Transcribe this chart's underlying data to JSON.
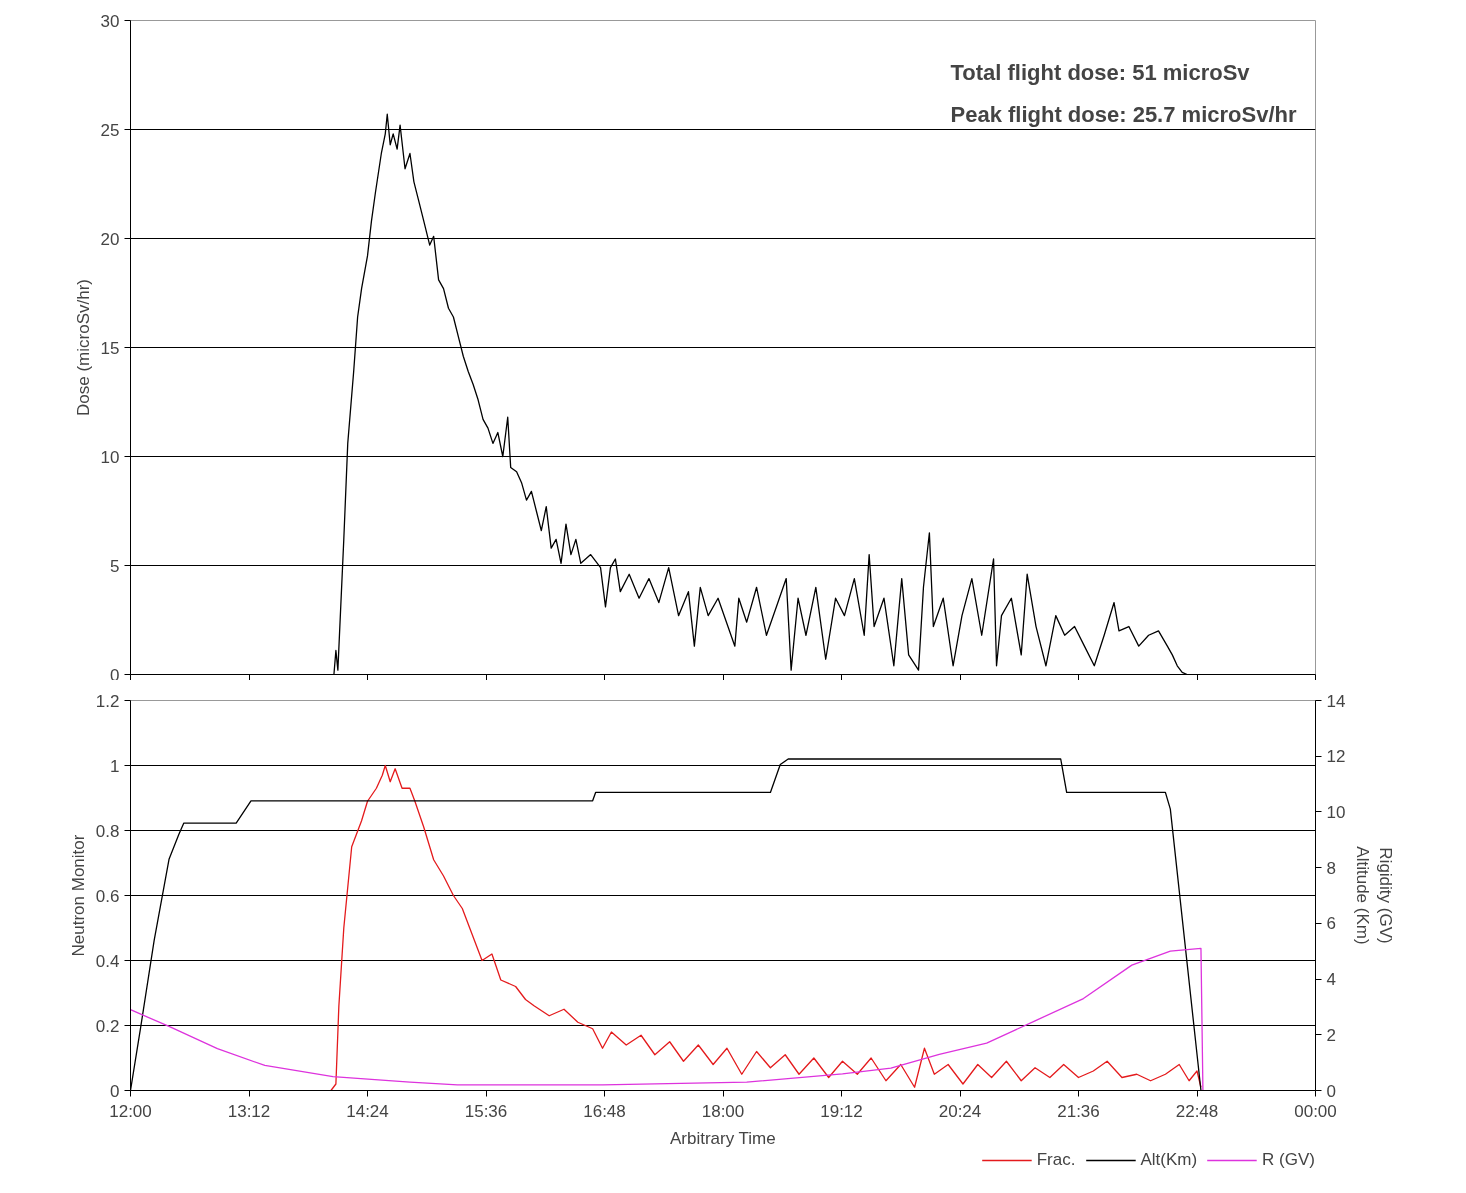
{
  "chart_data": [
    {
      "type": "line",
      "ylabel": "Dose (microSv/hr)",
      "xlim": [
        12,
        24
      ],
      "ylim": [
        0,
        30
      ],
      "yticks": [
        0,
        5,
        10,
        15,
        20,
        25,
        30
      ],
      "xticks": [
        {
          "value": 12,
          "label": null
        },
        {
          "value": 13.2,
          "label": null
        },
        {
          "value": 14.4,
          "label": null
        },
        {
          "value": 15.6,
          "label": null
        },
        {
          "value": 16.8,
          "label": null
        },
        {
          "value": 18,
          "label": null
        },
        {
          "value": 19.2,
          "label": null
        },
        {
          "value": 20.4,
          "label": null
        },
        {
          "value": 21.6,
          "label": null
        },
        {
          "value": 22.8,
          "label": null
        },
        {
          "value": 24,
          "label": null
        }
      ],
      "tick_labels": "y",
      "grid": "y",
      "legend": false,
      "annotations": [
        "Total flight dose: 51 microSv",
        "Peak flight dose: 25.7 microSv/hr"
      ],
      "series": [
        {
          "color": "#000000",
          "x": [
            14.06,
            14.08,
            14.1,
            14.16,
            14.2,
            14.26,
            14.3,
            14.34,
            14.4,
            14.44,
            14.48,
            14.54,
            14.58,
            14.6,
            14.63,
            14.66,
            14.7,
            14.73,
            14.78,
            14.83,
            14.87,
            14.92,
            14.97,
            15.03,
            15.07,
            15.12,
            15.17,
            15.22,
            15.27,
            15.32,
            15.37,
            15.42,
            15.47,
            15.52,
            15.57,
            15.62,
            15.67,
            15.72,
            15.77,
            15.82,
            15.85,
            15.91,
            15.96,
            16.01,
            16.06,
            16.11,
            16.16,
            16.21,
            16.26,
            16.31,
            16.36,
            16.41,
            16.46,
            16.51,
            16.56,
            16.66,
            16.76,
            16.81,
            16.86,
            16.91,
            16.96,
            17.05,
            17.15,
            17.25,
            17.35,
            17.45,
            17.55,
            17.65,
            17.71,
            17.77,
            17.85,
            17.95,
            18.05,
            18.12,
            18.16,
            18.24,
            18.34,
            18.44,
            18.54,
            18.64,
            18.69,
            18.76,
            18.84,
            18.94,
            19.04,
            19.14,
            19.23,
            19.33,
            19.43,
            19.48,
            19.53,
            19.63,
            19.73,
            19.81,
            19.88,
            19.98,
            20.03,
            20.09,
            20.13,
            20.23,
            20.33,
            20.42,
            20.52,
            20.62,
            20.74,
            20.77,
            20.82,
            20.92,
            21.02,
            21.08,
            21.17,
            21.27,
            21.37,
            21.46,
            21.56,
            21.66,
            21.76,
            21.86,
            21.96,
            22.01,
            22.11,
            22.21,
            22.31,
            22.41,
            22.5,
            22.55,
            22.6,
            22.65,
            22.7
          ],
          "values": [
            0,
            1.1,
            0.2,
            6.2,
            10.6,
            13.9,
            16.4,
            17.7,
            19.2,
            20.8,
            22.1,
            23.9,
            24.8,
            25.7,
            24.3,
            24.8,
            24.1,
            25.2,
            23.2,
            23.9,
            22.6,
            21.7,
            20.8,
            19.7,
            20.1,
            18.1,
            17.7,
            16.8,
            16.4,
            15.5,
            14.6,
            13.9,
            13.3,
            12.6,
            11.7,
            11.3,
            10.6,
            11.1,
            10.0,
            11.8,
            9.5,
            9.3,
            8.8,
            8.0,
            8.4,
            7.5,
            6.6,
            7.7,
            5.8,
            6.2,
            5.1,
            6.9,
            5.5,
            6.2,
            5.1,
            5.5,
            4.9,
            3.1,
            4.9,
            5.3,
            3.8,
            4.6,
            3.5,
            4.4,
            3.3,
            4.9,
            2.7,
            3.8,
            1.3,
            4.0,
            2.7,
            3.5,
            2.2,
            1.3,
            3.5,
            2.4,
            4.0,
            1.8,
            3.1,
            4.4,
            0.2,
            3.5,
            1.8,
            4.0,
            0.7,
            3.5,
            2.7,
            4.4,
            1.8,
            5.5,
            2.2,
            3.5,
            0.4,
            4.4,
            0.9,
            0.2,
            4.0,
            6.5,
            2.2,
            3.5,
            0.4,
            2.7,
            4.4,
            1.8,
            5.3,
            0.4,
            2.7,
            3.5,
            0.9,
            4.6,
            2.2,
            0.4,
            2.7,
            1.8,
            2.2,
            1.3,
            0.4,
            1.8,
            3.3,
            2.0,
            2.2,
            1.3,
            1.8,
            2.0,
            1.3,
            0.9,
            0.4,
            0.1,
            0
          ]
        }
      ]
    },
    {
      "type": "line",
      "xlabel": "Arbitrary Time",
      "ylabel": "Neutron Monitor",
      "y2label": "Rigidity (GV)\nAltitude (Km)",
      "xlim": [
        12,
        24
      ],
      "ylim": [
        0,
        1.2
      ],
      "yticks": [
        0,
        0.2,
        0.4,
        0.6,
        0.8,
        1,
        1.2
      ],
      "y2lim": [
        0,
        14
      ],
      "y2ticks": [
        0,
        2,
        4,
        6,
        8,
        10,
        12,
        14
      ],
      "xticks": [
        {
          "value": 12,
          "label": "12:00"
        },
        {
          "value": 13.2,
          "label": "13:12"
        },
        {
          "value": 14.4,
          "label": "14:24"
        },
        {
          "value": 15.6,
          "label": "15:36"
        },
        {
          "value": 16.8,
          "label": "16:48"
        },
        {
          "value": 18,
          "label": "18:00"
        },
        {
          "value": 19.2,
          "label": "19:12"
        },
        {
          "value": 20.4,
          "label": "20:24"
        },
        {
          "value": 21.6,
          "label": "21:36"
        },
        {
          "value": 22.8,
          "label": "22:48"
        },
        {
          "value": 24,
          "label": "00:00"
        }
      ],
      "grid": "y",
      "legend": "bottom",
      "series": [
        {
          "name": "Frac.",
          "color": "#e41a1c",
          "x": [
            14.03,
            14.08,
            14.11,
            14.16,
            14.24,
            14.34,
            14.4,
            14.49,
            14.55,
            14.58,
            14.63,
            14.68,
            14.75,
            14.83,
            14.88,
            14.97,
            15.07,
            15.17,
            15.27,
            15.36,
            15.46,
            15.56,
            15.66,
            15.75,
            15.9,
            16.0,
            16.09,
            16.24,
            16.39,
            16.53,
            16.68,
            16.78,
            16.87,
            17.02,
            17.17,
            17.31,
            17.46,
            17.6,
            17.75,
            17.9,
            18.04,
            18.19,
            18.34,
            18.48,
            18.63,
            18.77,
            18.92,
            19.07,
            19.21,
            19.36,
            19.5,
            19.65,
            19.8,
            19.94,
            20.04,
            20.14,
            20.28,
            20.43,
            20.58,
            20.72,
            20.87,
            21.02,
            21.16,
            21.31,
            21.45,
            21.6,
            21.75,
            21.89,
            22.04,
            22.19,
            22.33,
            22.48,
            22.62,
            22.72,
            22.8,
            22.84
          ],
          "values": [
            0,
            0.02,
            0.26,
            0.5,
            0.75,
            0.83,
            0.89,
            0.93,
            0.97,
            1.0,
            0.95,
            0.99,
            0.93,
            0.93,
            0.89,
            0.81,
            0.71,
            0.66,
            0.6,
            0.56,
            0.48,
            0.4,
            0.42,
            0.34,
            0.32,
            0.28,
            0.26,
            0.23,
            0.25,
            0.21,
            0.19,
            0.13,
            0.18,
            0.14,
            0.17,
            0.11,
            0.15,
            0.09,
            0.14,
            0.08,
            0.13,
            0.05,
            0.12,
            0.07,
            0.11,
            0.05,
            0.1,
            0.04,
            0.09,
            0.05,
            0.1,
            0.03,
            0.08,
            0.01,
            0.13,
            0.05,
            0.08,
            0.02,
            0.08,
            0.04,
            0.09,
            0.03,
            0.07,
            0.04,
            0.08,
            0.04,
            0.06,
            0.09,
            0.04,
            0.05,
            0.03,
            0.05,
            0.08,
            0.03,
            0.06,
            0.01
          ]
        },
        {
          "name": "Alt(Km)",
          "color": "#000000",
          "axis": "y2",
          "x": [
            12.0,
            12.1,
            12.24,
            12.39,
            12.49,
            12.54,
            13.07,
            13.22,
            16.68,
            16.71,
            18.48,
            18.58,
            18.66,
            21.42,
            21.48,
            22.48,
            22.53,
            22.84
          ],
          "values": [
            0,
            2.2,
            5.4,
            8.3,
            9.2,
            9.6,
            9.6,
            10.4,
            10.4,
            10.7,
            10.7,
            11.7,
            11.9,
            11.9,
            10.7,
            10.7,
            10.1,
            0
          ]
        },
        {
          "name": "R (GV)",
          "color": "#dd33dd",
          "axis": "y2",
          "x": [
            12.0,
            12.39,
            12.88,
            13.36,
            14.05,
            14.83,
            15.31,
            16.78,
            18.24,
            19.21,
            19.7,
            20.19,
            20.67,
            21.16,
            21.65,
            22.14,
            22.53,
            22.84,
            22.86
          ],
          "values": [
            2.9,
            2.3,
            1.5,
            0.9,
            0.5,
            0.3,
            0.2,
            0.2,
            0.3,
            0.6,
            0.8,
            1.3,
            1.7,
            2.5,
            3.3,
            4.5,
            5.0,
            5.1,
            0
          ]
        }
      ]
    }
  ]
}
